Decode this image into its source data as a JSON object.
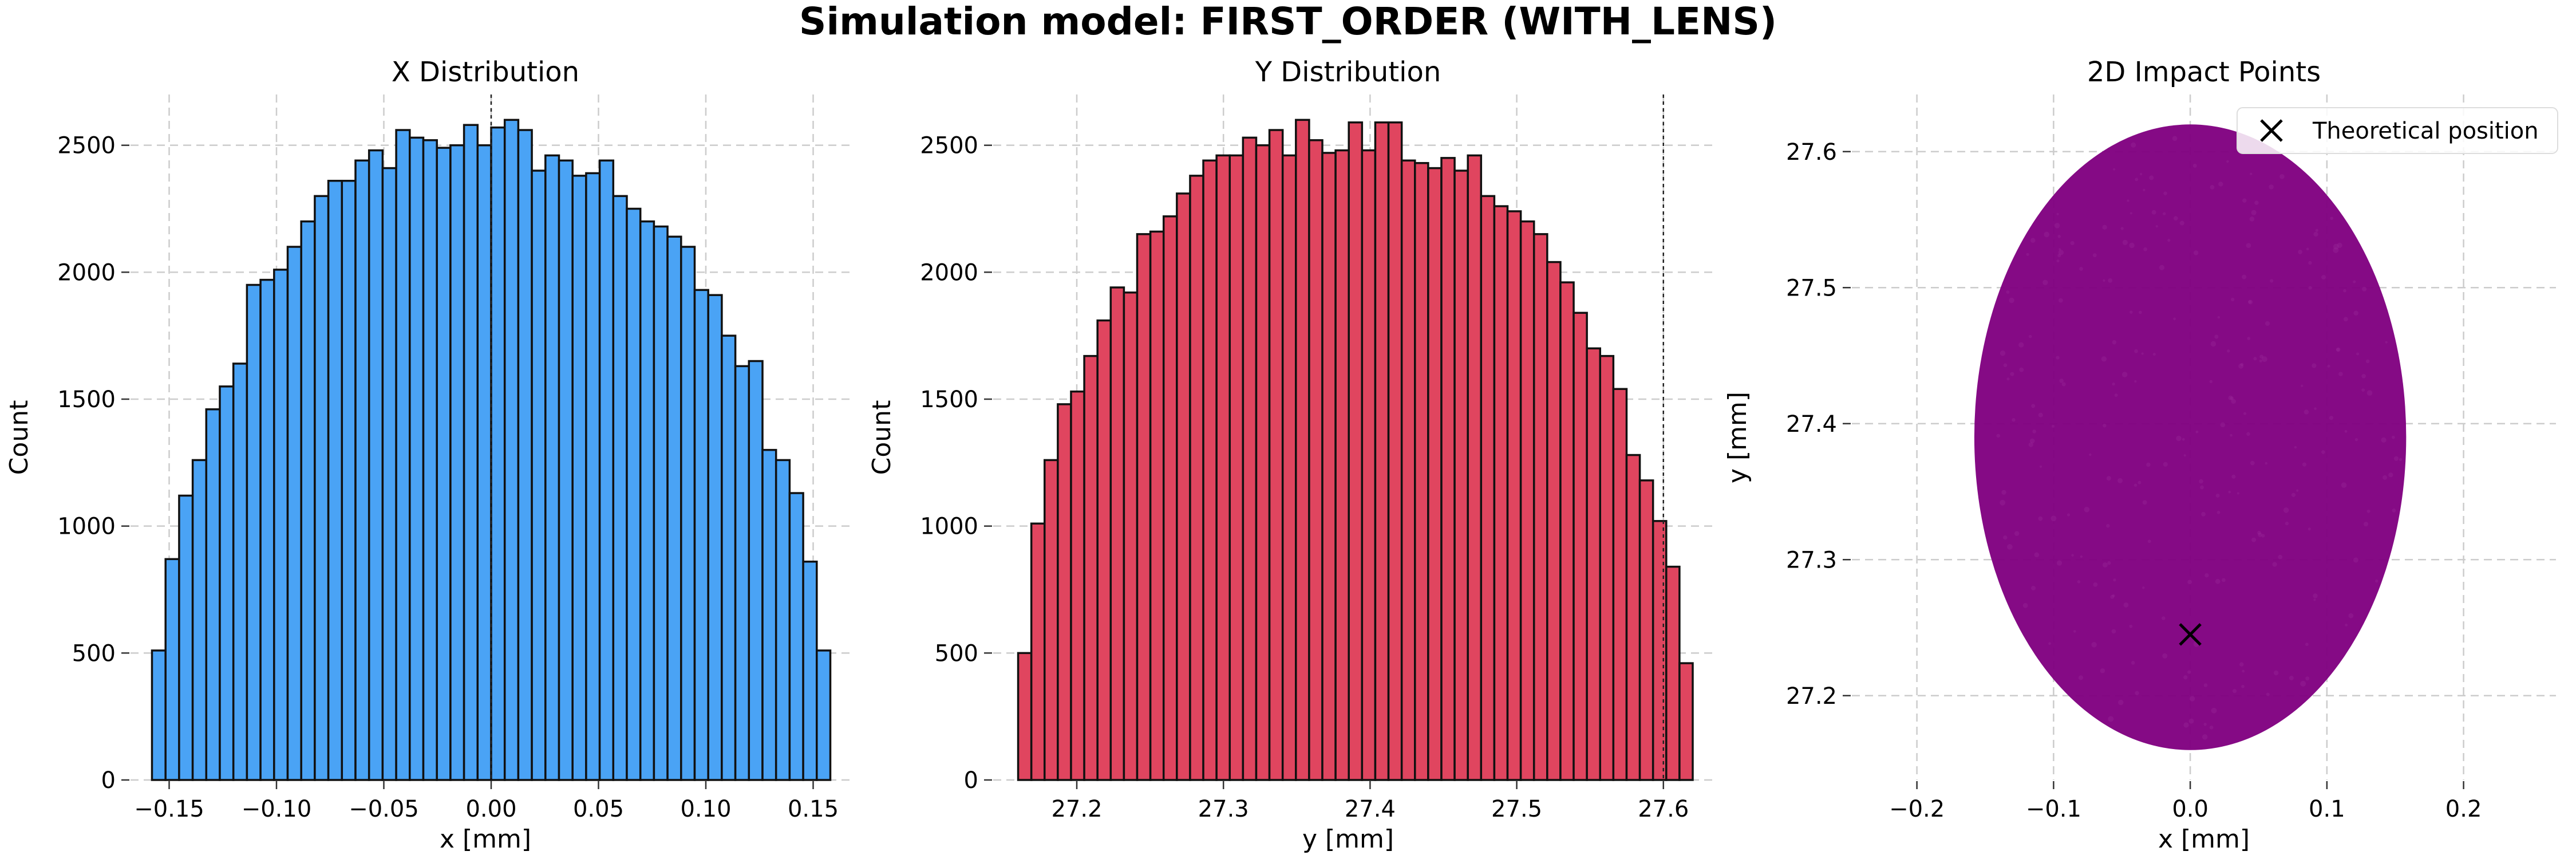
{
  "figure": {
    "suptitle": "Simulation model: FIRST_ORDER (WITH_LENS)"
  },
  "colors": {
    "x_hist": "#4aa3f5",
    "y_hist": "#e0455f",
    "scatter": "#800080",
    "grid": "#cccccc",
    "edge": "#111111"
  },
  "chart_data": [
    {
      "type": "bar",
      "title": "X Distribution",
      "xlabel": "x [mm]",
      "ylabel": "Count",
      "xlim": [
        -0.168,
        0.168
      ],
      "ylim": [
        0,
        2700
      ],
      "xticks": [
        -0.15,
        -0.1,
        -0.05,
        0.0,
        0.05,
        0.1,
        0.15
      ],
      "xtick_labels": [
        "−0.15",
        "−0.10",
        "−0.05",
        "0.00",
        "0.05",
        "0.10",
        "0.15"
      ],
      "yticks": [
        0,
        500,
        1000,
        1500,
        2000,
        2500
      ],
      "ytick_labels": [
        "0",
        "500",
        "1000",
        "1500",
        "2000",
        "2500"
      ],
      "vline": 0,
      "grid": true,
      "bin_start": -0.158,
      "bin_end": 0.158,
      "counts": [
        510,
        870,
        1120,
        1260,
        1460,
        1550,
        1640,
        1950,
        1970,
        2010,
        2100,
        2200,
        2300,
        2360,
        2360,
        2440,
        2480,
        2410,
        2560,
        2530,
        2520,
        2490,
        2500,
        2580,
        2500,
        2570,
        2600,
        2560,
        2400,
        2460,
        2440,
        2380,
        2390,
        2440,
        2300,
        2250,
        2200,
        2180,
        2140,
        2100,
        1930,
        1910,
        1750,
        1630,
        1650,
        1300,
        1260,
        1130,
        860,
        510
      ]
    },
    {
      "type": "bar",
      "title": "Y Distribution",
      "xlabel": "y [mm]",
      "ylabel": "Count",
      "xlim": [
        27.143,
        27.636
      ],
      "ylim": [
        0,
        2700
      ],
      "xticks": [
        27.2,
        27.3,
        27.4,
        27.5,
        27.6
      ],
      "xtick_labels": [
        "27.2",
        "27.3",
        "27.4",
        "27.5",
        "27.6"
      ],
      "yticks": [
        0,
        500,
        1000,
        1500,
        2000,
        2500
      ],
      "ytick_labels": [
        "0",
        "500",
        "1000",
        "1500",
        "2000",
        "2500"
      ],
      "vline": 27.6,
      "grid": true,
      "bin_start": 27.16,
      "bin_end": 27.62,
      "counts": [
        500,
        1010,
        1260,
        1480,
        1530,
        1670,
        1810,
        1940,
        1920,
        2150,
        2160,
        2220,
        2310,
        2380,
        2440,
        2460,
        2460,
        2530,
        2500,
        2560,
        2460,
        2600,
        2520,
        2470,
        2480,
        2590,
        2480,
        2590,
        2590,
        2440,
        2430,
        2410,
        2450,
        2400,
        2460,
        2300,
        2260,
        2240,
        2200,
        2150,
        2040,
        1960,
        1840,
        1700,
        1670,
        1540,
        1280,
        1180,
        1020,
        840,
        460
      ]
    },
    {
      "type": "scatter",
      "title": "2D Impact Points",
      "xlabel": "x [mm]",
      "ylabel": "y [mm]",
      "xlim": [
        -0.2476,
        0.2676
      ],
      "ylim": [
        27.138,
        27.642
      ],
      "xticks": [
        -0.2,
        -0.1,
        0.0,
        0.1,
        0.2
      ],
      "xtick_labels": [
        "−0.2",
        "−0.1",
        "0.0",
        "0.1",
        "0.2"
      ],
      "yticks": [
        27.2,
        27.3,
        27.4,
        27.5,
        27.6
      ],
      "ytick_labels": [
        "27.2",
        "27.3",
        "27.4",
        "27.5",
        "27.6"
      ],
      "grid": true,
      "cloud": {
        "shape": "ellipse",
        "center": [
          0.0,
          27.39
        ],
        "semi_axes": [
          0.158,
          0.23
        ]
      },
      "marker": {
        "label": "Theoretical position",
        "x": 0.0,
        "y": 27.245,
        "symbol": "x"
      },
      "legend": {
        "position": "upper-right",
        "entries": [
          "Theoretical position"
        ]
      }
    }
  ]
}
